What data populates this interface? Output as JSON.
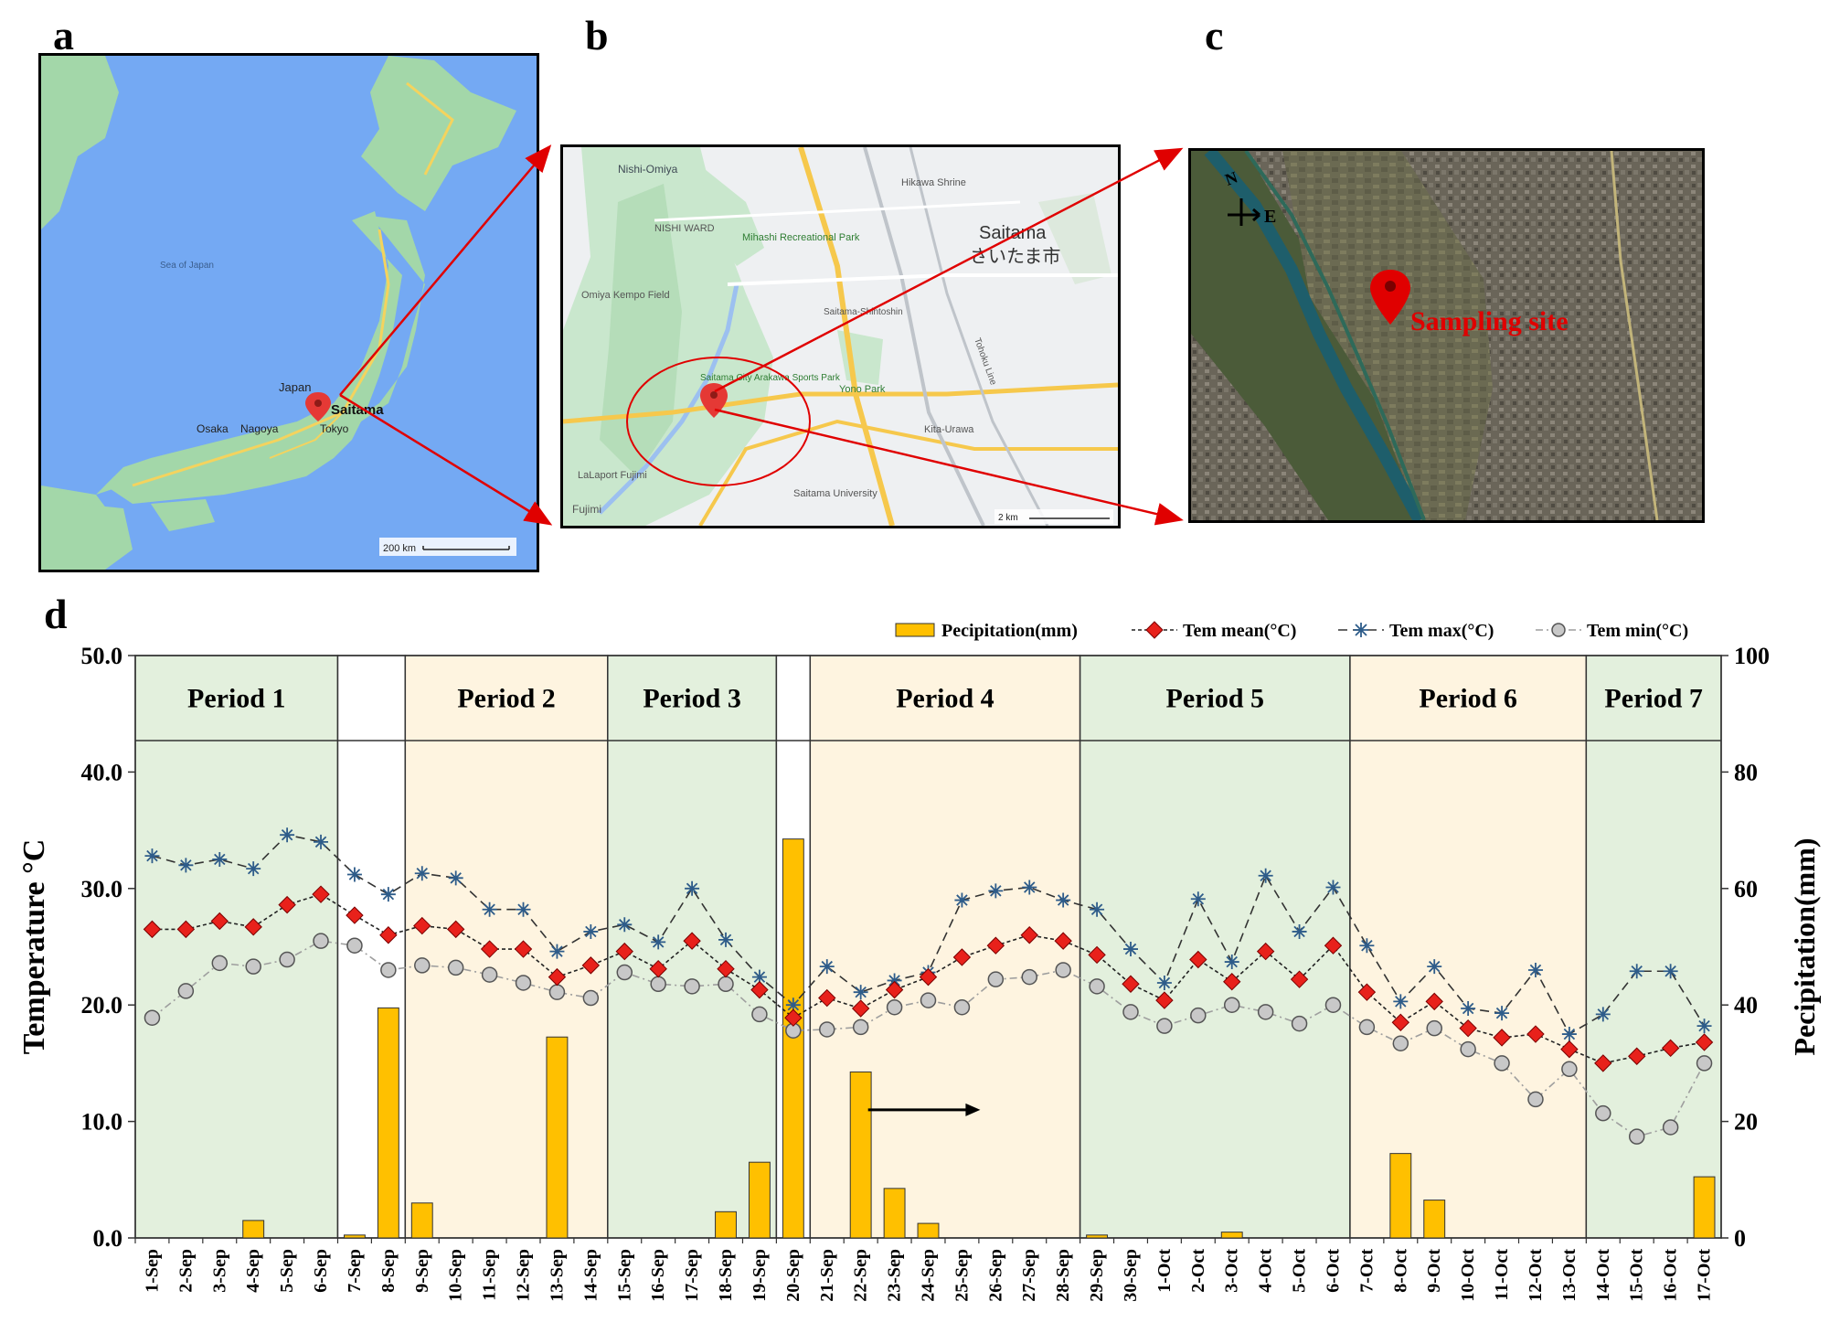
{
  "panels": {
    "a": {
      "letter": "a",
      "sea_label": "Sea of Japan",
      "country_label": "Japan",
      "city_labels": [
        "Osaka",
        "Nagoya",
        "Tokyo"
      ],
      "pin_label": "Saitama",
      "scale_label": "200 km"
    },
    "b": {
      "letter": "b",
      "city_label": "Saitama",
      "city_label_jp": "さいたま市",
      "places": [
        "Nishi-Omiya",
        "NISHI WARD",
        "Mihashi Recreational Park",
        "Hikawa Shrine",
        "Omiya Kempo Field",
        "Saitama-Shintoshin",
        "Saitama City Arakawa Sports Park",
        "Yono Park",
        "Kita-Urawa",
        "LaLaport Fujimi",
        "Saitama University",
        "Fujimi",
        "Tohoku Line"
      ],
      "scale_label": "2 km"
    },
    "c": {
      "letter": "c",
      "compass_n": "N",
      "compass_e": "E",
      "site_label": "Sampling site"
    },
    "d": {
      "letter": "d"
    }
  },
  "colors": {
    "precip": "#FFC000",
    "mean": "#E8211B",
    "max": "#2E5C8A",
    "min": "#C8C8C8",
    "green_period": "#E3F0DD",
    "yellow_period": "#FEF4E0",
    "arrow": "#E00000"
  },
  "chart_data": {
    "type": "bar+line",
    "categories": [
      "1-Sep",
      "2-Sep",
      "3-Sep",
      "4-Sep",
      "5-Sep",
      "6-Sep",
      "7-Sep",
      "8-Sep",
      "9-Sep",
      "10-Sep",
      "11-Sep",
      "12-Sep",
      "13-Sep",
      "14-Sep",
      "15-Sep",
      "16-Sep",
      "17-Sep",
      "18-Sep",
      "19-Sep",
      "20-Sep",
      "21-Sep",
      "22-Sep",
      "23-Sep",
      "24-Sep",
      "25-Sep",
      "26-Sep",
      "27-Sep",
      "28-Sep",
      "29-Sep",
      "30-Sep",
      "1-Oct",
      "2-Oct",
      "3-Oct",
      "4-Oct",
      "5-Oct",
      "6-Oct",
      "7-Oct",
      "8-Oct",
      "9-Oct",
      "10-Oct",
      "11-Oct",
      "12-Oct",
      "13-Oct",
      "14-Oct",
      "15-Oct",
      "16-Oct",
      "17-Oct"
    ],
    "ylabel": "Temperature °C",
    "y2label": "Pecipitation(mm)",
    "ylim": [
      0,
      50
    ],
    "y2lim": [
      0,
      100
    ],
    "yticks": [
      "0.0",
      "10.0",
      "20.0",
      "30.0",
      "40.0",
      "50.0"
    ],
    "y2ticks": [
      "0",
      "20",
      "40",
      "60",
      "80",
      "100"
    ],
    "legend_position": "top-right",
    "series": [
      {
        "name": "Pecipitation(mm)",
        "axis": "right",
        "kind": "bar",
        "values": [
          0,
          0,
          0,
          3,
          0,
          0,
          0.5,
          39.5,
          6,
          0,
          0,
          0,
          34.5,
          0,
          0,
          0,
          0,
          4.5,
          13,
          68.5,
          0,
          28.5,
          8.5,
          2.5,
          0,
          0,
          0,
          0,
          0.5,
          0,
          0,
          0,
          1,
          0,
          0,
          0,
          0,
          14.5,
          6.5,
          0,
          0,
          0,
          0,
          0,
          0,
          0,
          10.5
        ]
      },
      {
        "name": "Tem mean(°C)",
        "axis": "left",
        "kind": "line",
        "values": [
          26.5,
          26.5,
          27.2,
          26.7,
          28.6,
          29.5,
          27.7,
          26.0,
          26.8,
          26.5,
          24.8,
          24.8,
          22.4,
          23.4,
          24.6,
          23.1,
          25.5,
          23.1,
          21.3,
          18.9,
          20.6,
          19.7,
          21.3,
          22.4,
          24.1,
          25.1,
          26.0,
          25.5,
          24.3,
          21.8,
          20.4,
          23.9,
          22.0,
          24.6,
          22.2,
          25.1,
          21.1,
          18.5,
          20.3,
          18.0,
          17.2,
          17.5,
          16.2,
          15.0,
          15.6,
          16.3,
          16.8
        ]
      },
      {
        "name": "Tem max(°C)",
        "axis": "left",
        "kind": "line",
        "values": [
          32.8,
          32.0,
          32.5,
          31.7,
          34.6,
          34.0,
          31.2,
          29.5,
          31.3,
          30.9,
          28.2,
          28.2,
          24.6,
          26.3,
          26.9,
          25.4,
          30.0,
          25.6,
          22.4,
          20.0,
          23.3,
          21.1,
          22.1,
          22.8,
          29.0,
          29.8,
          30.1,
          29.0,
          28.2,
          24.8,
          21.9,
          29.1,
          23.7,
          31.1,
          26.3,
          30.1,
          25.1,
          20.3,
          23.3,
          19.7,
          19.3,
          23.0,
          17.5,
          19.2,
          22.9,
          22.9,
          18.2
        ]
      },
      {
        "name": "Tem min(°C)",
        "axis": "left",
        "kind": "line",
        "values": [
          18.9,
          21.2,
          23.6,
          23.3,
          23.9,
          25.5,
          25.1,
          23.0,
          23.4,
          23.2,
          22.6,
          21.9,
          21.1,
          20.6,
          22.8,
          21.8,
          21.6,
          21.8,
          19.2,
          17.8,
          17.9,
          18.1,
          19.8,
          20.4,
          19.8,
          22.2,
          22.4,
          23.0,
          21.6,
          19.4,
          18.2,
          19.1,
          20.0,
          19.4,
          18.4,
          20.0,
          18.1,
          16.7,
          18.0,
          16.2,
          15.0,
          11.9,
          14.5,
          10.7,
          8.7,
          9.5,
          15.0
        ]
      }
    ],
    "periods": [
      {
        "label": "Period 1",
        "start": 0,
        "end": 5,
        "color": "green"
      },
      {
        "label": "",
        "start": 6,
        "end": 7,
        "color": "none"
      },
      {
        "label": "Period 2",
        "start": 8,
        "end": 13,
        "color": "yellow"
      },
      {
        "label": "Period 3",
        "start": 14,
        "end": 18,
        "color": "green"
      },
      {
        "label": "",
        "start": 19,
        "end": 19,
        "color": "none"
      },
      {
        "label": "Period 4",
        "start": 20,
        "end": 27,
        "color": "yellow"
      },
      {
        "label": "Period 5",
        "start": 28,
        "end": 35,
        "color": "green"
      },
      {
        "label": "Period 6",
        "start": 36,
        "end": 42,
        "color": "yellow"
      },
      {
        "label": "Period 7",
        "start": 43,
        "end": 46,
        "color": "green"
      }
    ]
  }
}
